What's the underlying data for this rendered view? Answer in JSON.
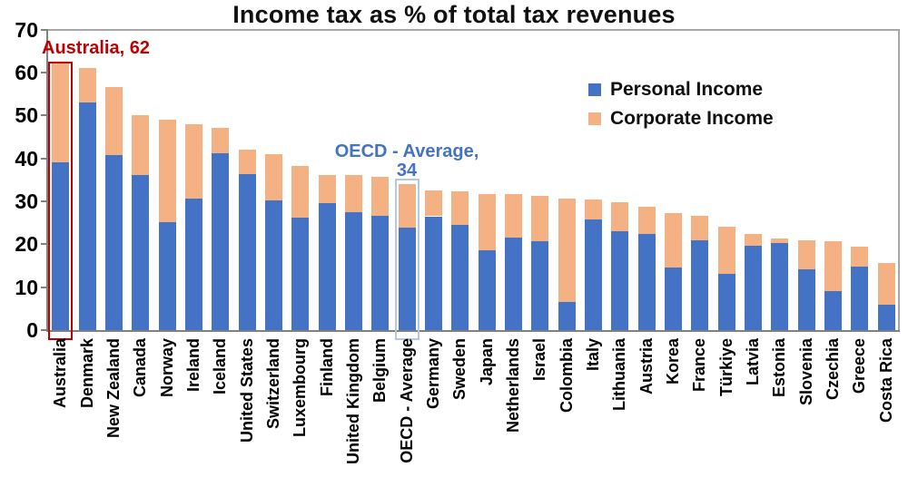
{
  "title": "Income tax as % of total tax revenues",
  "legend": {
    "personal_label": "Personal Income",
    "corporate_label": "Corporate Income"
  },
  "annotations": {
    "australia": {
      "text": "Australia, 62",
      "color": "#C00000"
    },
    "oecd": {
      "line1": "OECD - Average,",
      "line2": "34",
      "color": "#4472C4"
    }
  },
  "colors": {
    "personal": "#4472C4",
    "corporate": "#F4B183",
    "axis": "#808080",
    "plot_border": "#A6A6A6",
    "australia_box": "#C00000",
    "oecd_box": "#B4C7E7"
  },
  "chart_data": {
    "type": "bar",
    "stacked": true,
    "title": "Income tax as % of total tax revenues",
    "xlabel": "",
    "ylabel": "",
    "ylim": [
      0,
      70
    ],
    "yticks": [
      0,
      10,
      20,
      30,
      40,
      50,
      60,
      70
    ],
    "grid": false,
    "legend_position": "upper right",
    "categories": [
      "Australia",
      "Denmark",
      "New Zealand",
      "Canada",
      "Norway",
      "Ireland",
      "Iceland",
      "United States",
      "Switzerland",
      "Luxembourg",
      "Finland",
      "United Kingdom",
      "Belgium",
      "OECD - Average",
      "Germany",
      "Sweden",
      "Japan",
      "Netherlands",
      "Israel",
      "Colombia",
      "Italy",
      "Lithuania",
      "Austria",
      "Korea",
      "France",
      "Türkiye",
      "Latvia",
      "Estonia",
      "Slovenia",
      "Czechia",
      "Greece",
      "Costa Rica"
    ],
    "series": [
      {
        "name": "Personal Income",
        "color": "#4472C4",
        "values": [
          39,
          53,
          40.7,
          36.2,
          25.2,
          30.7,
          41.2,
          36.4,
          30.2,
          26.2,
          29.6,
          27.4,
          26.6,
          23.8,
          26.5,
          24.4,
          18.6,
          21.6,
          20.7,
          6.6,
          25.8,
          23.1,
          22.3,
          14.5,
          20.9,
          13.1,
          19.6,
          20.2,
          14.1,
          9.1,
          14.8,
          5.9
        ]
      },
      {
        "name": "Corporate Income",
        "color": "#F4B183",
        "values": [
          23,
          8,
          15.8,
          13.8,
          23.8,
          17.3,
          5.8,
          5.6,
          10.8,
          12,
          6.6,
          8.7,
          9,
          10.2,
          6,
          7.9,
          13.1,
          10,
          10.6,
          24,
          4.6,
          6.7,
          6.5,
          12.7,
          5.8,
          10.9,
          2.7,
          1.2,
          6.7,
          11.5,
          4.7,
          9.7
        ]
      }
    ],
    "annotated_totals": {
      "Australia": 62,
      "OECD - Average": 34
    },
    "highlight_boxes": [
      {
        "category": "Australia",
        "color": "#C00000",
        "top_value": 62.5,
        "stroke": 2
      },
      {
        "category": "OECD - Average",
        "color": "#B4C7E7",
        "top_value": 35.2,
        "stroke": 2
      }
    ]
  }
}
